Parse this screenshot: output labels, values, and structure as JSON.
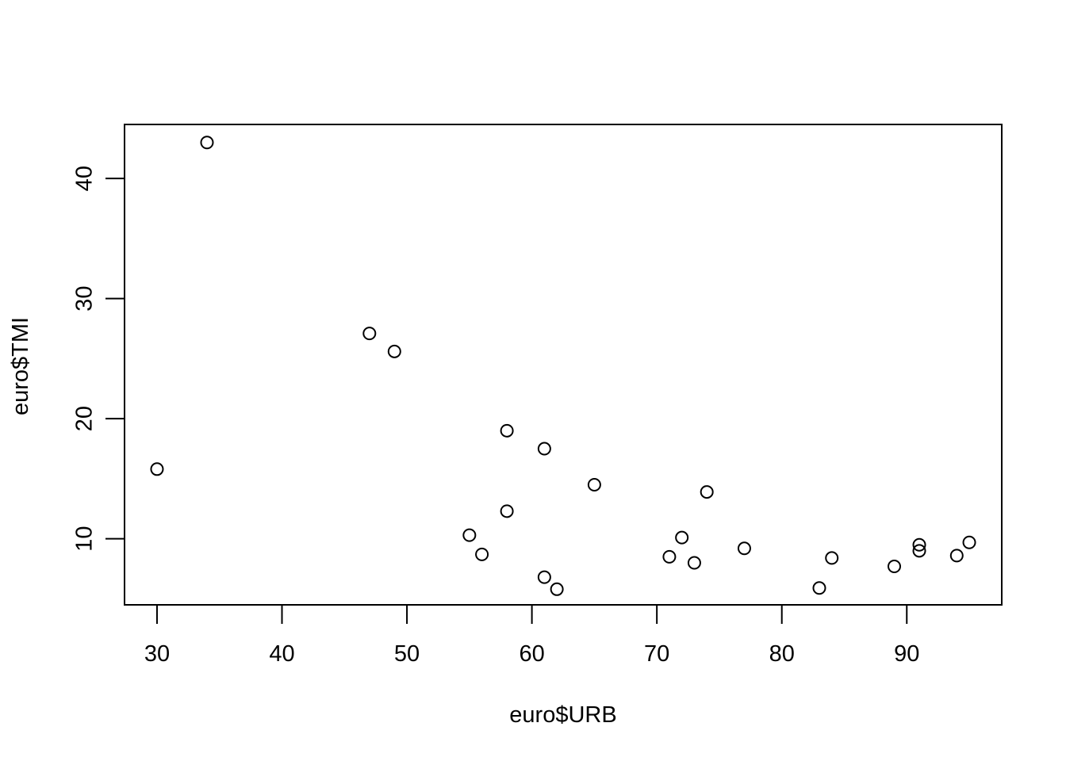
{
  "chart_data": {
    "type": "scatter",
    "title": "",
    "xlabel": "euro$URB",
    "ylabel": "euro$TMI",
    "xlim": [
      27.4,
      97.6
    ],
    "ylim": [
      4.5,
      44.5
    ],
    "x_ticks": [
      30,
      40,
      50,
      60,
      70,
      80,
      90
    ],
    "y_ticks": [
      10,
      20,
      30,
      40
    ],
    "grid": false,
    "legend": "none",
    "point_style": "open-circle",
    "colors": {
      "foreground": "#000000",
      "background": "#ffffff"
    },
    "points": [
      {
        "x": 30,
        "y": 15.8
      },
      {
        "x": 34,
        "y": 43.0
      },
      {
        "x": 47,
        "y": 27.1
      },
      {
        "x": 49,
        "y": 25.6
      },
      {
        "x": 55,
        "y": 10.3
      },
      {
        "x": 56,
        "y": 8.7
      },
      {
        "x": 58,
        "y": 19.0
      },
      {
        "x": 58,
        "y": 12.3
      },
      {
        "x": 61,
        "y": 17.5
      },
      {
        "x": 61,
        "y": 6.8
      },
      {
        "x": 62,
        "y": 5.8
      },
      {
        "x": 65,
        "y": 14.5
      },
      {
        "x": 71,
        "y": 8.5
      },
      {
        "x": 72,
        "y": 10.1
      },
      {
        "x": 73,
        "y": 8.0
      },
      {
        "x": 74,
        "y": 13.9
      },
      {
        "x": 77,
        "y": 9.2
      },
      {
        "x": 83,
        "y": 5.9
      },
      {
        "x": 84,
        "y": 8.4
      },
      {
        "x": 89,
        "y": 7.7
      },
      {
        "x": 91,
        "y": 9.5
      },
      {
        "x": 91,
        "y": 9.0
      },
      {
        "x": 94,
        "y": 8.6
      },
      {
        "x": 95,
        "y": 9.7
      }
    ]
  }
}
